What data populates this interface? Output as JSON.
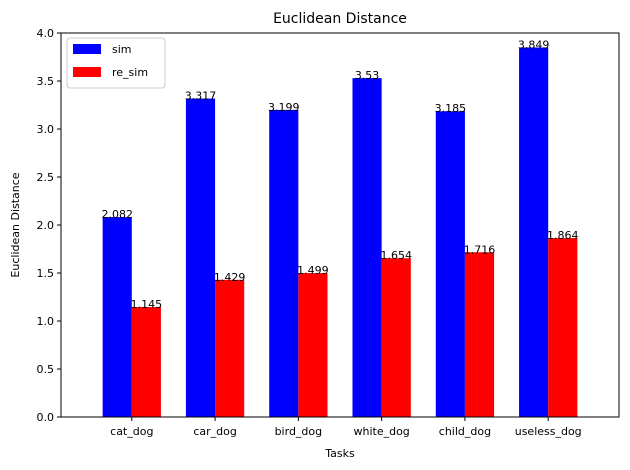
{
  "chart_data": {
    "type": "bar",
    "title": "Euclidean Distance",
    "xlabel": "Tasks",
    "ylabel": "Euclidean Distance",
    "categories": [
      "cat_dog",
      "car_dog",
      "bird_dog",
      "white_dog",
      "child_dog",
      "useless_dog"
    ],
    "series": [
      {
        "name": "sim",
        "color": "#0000ff",
        "values": [
          2.082,
          3.317,
          3.199,
          3.53,
          3.185,
          3.849
        ],
        "labels": [
          "2.082",
          "3.317",
          "3.199",
          "3.53",
          "3.185",
          "3.849"
        ]
      },
      {
        "name": "re_sim",
        "color": "#ff0000",
        "values": [
          1.145,
          1.429,
          1.499,
          1.654,
          1.716,
          1.864
        ],
        "labels": [
          "1.145",
          "1.429",
          "1.499",
          "1.654",
          "1.716",
          "1.864"
        ]
      }
    ],
    "ylim": [
      0,
      4.0
    ],
    "yticks": [
      0.0,
      0.5,
      1.0,
      1.5,
      2.0,
      2.5,
      3.0,
      3.5,
      4.0
    ],
    "ytick_labels": [
      "0.0",
      "0.5",
      "1.0",
      "1.5",
      "2.0",
      "2.5",
      "3.0",
      "3.5",
      "4.0"
    ],
    "grid": false,
    "legend": "top-left"
  }
}
